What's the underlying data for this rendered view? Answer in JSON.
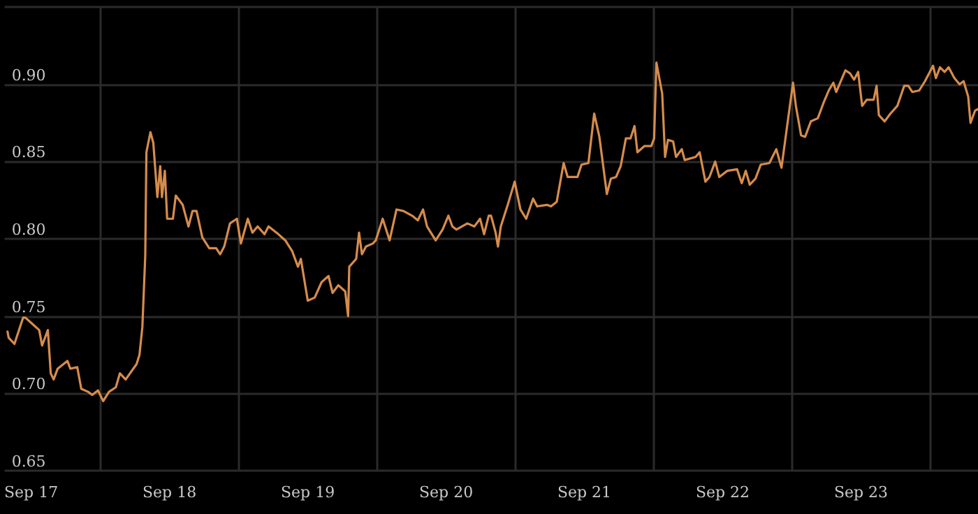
{
  "chart_data": {
    "type": "line",
    "color": "#d68c4c",
    "marker": "none",
    "line_style": "solid",
    "grid": true,
    "x": [
      "--09-16T19:54",
      "--09-16T20:06",
      "--09-16T21:06",
      "--09-16T22:36",
      "--09-16T23:00",
      "--09-17T00:12",
      "--09-17T01:24",
      "--09-17T01:54",
      "--09-17T02:54",
      "--09-17T03:24",
      "--09-17T03:54",
      "--09-17T04:36",
      "--09-17T06:18",
      "--09-17T06:48",
      "--09-17T08:00",
      "--09-17T08:42",
      "--09-17T09:54",
      "--09-17T10:36",
      "--09-17T11:36",
      "--09-17T12:30",
      "--09-17T13:30",
      "--09-17T14:42",
      "--09-17T15:24",
      "--09-17T16:24",
      "--09-17T18:18",
      "--09-17T18:48",
      "--09-17T19:18",
      "--09-17T19:48",
      "--09-17T20:00",
      "--09-17T20:42",
      "--09-17T21:12",
      "--09-17T21:54",
      "--09-17T22:24",
      "--09-17T22:42",
      "--09-17T23:12",
      "--09-17T23:36",
      "--09-18T00:36",
      "--09-18T01:06",
      "--09-18T02:18",
      "--09-18T03:18",
      "--09-18T04:00",
      "--09-18T04:42",
      "--09-18T05:42",
      "--09-18T06:54",
      "--09-18T08:06",
      "--09-18T08:48",
      "--09-18T09:30",
      "--09-18T10:30",
      "--09-18T11:42",
      "--09-18T12:24",
      "--09-18T13:36",
      "--09-18T14:24",
      "--09-18T15:18",
      "--09-18T16:30",
      "--09-18T17:12",
      "--09-18T18:54",
      "--09-18T20:06",
      "--09-18T21:18",
      "--09-18T21:36",
      "--09-18T22:18",
      "--09-18T22:48",
      "--09-19T00:00",
      "--09-19T01:12",
      "--09-19T02:24",
      "--09-19T03:36",
      "--09-19T04:18",
      "--09-19T05:18",
      "--09-19T06:30",
      "--09-19T07:00",
      "--09-19T07:12",
      "--09-19T08:24",
      "--09-19T08:54",
      "--09-19T09:24",
      "--09-19T10:06",
      "--09-19T11:18",
      "--09-19T11:48",
      "--09-19T13:00",
      "--09-19T14:12",
      "--09-19T15:24",
      "--09-19T16:36",
      "--09-19T18:06",
      "--09-19T19:06",
      "--09-19T20:00",
      "--09-19T20:42",
      "--09-19T22:12",
      "--09-19T23:24",
      "--09-20T00:24",
      "--09-20T01:06",
      "--09-20T01:48",
      "--09-20T03:42",
      "--09-20T04:54",
      "--09-20T05:54",
      "--09-20T06:36",
      "--09-20T07:24",
      "--09-20T07:48",
      "--09-20T08:36",
      "--09-20T09:00",
      "--09-20T09:30",
      "--09-20T10:42",
      "--09-20T11:54",
      "--09-20T12:54",
      "--09-20T13:54",
      "--09-20T15:06",
      "--09-20T15:48",
      "--09-20T17:30",
      "--09-20T18:12",
      "--09-20T19:12",
      "--09-20T20:24",
      "--09-20T21:06",
      "--09-20T22:48",
      "--09-20T23:30",
      "--09-21T00:42",
      "--09-21T01:42",
      "--09-21T02:36",
      "--09-21T03:54",
      "--09-21T04:36",
      "--09-21T05:30",
      "--09-21T06:18",
      "--09-21T07:12",
      "--09-21T08:00",
      "--09-21T08:42",
      "--09-21T09:12",
      "--09-21T10:24",
      "--09-21T11:36",
      "--09-21T12:06",
      "--09-21T12:30",
      "--09-21T13:30",
      "--09-21T14:00",
      "--09-21T14:30",
      "--09-21T15:24",
      "--09-21T15:54",
      "--09-21T16:54",
      "--09-21T17:24",
      "--09-21T19:18",
      "--09-21T20:00",
      "--09-21T21:00",
      "--09-21T21:42",
      "--09-21T22:42",
      "--09-21T23:24",
      "--09-22T00:48",
      "--09-22T02:30",
      "--09-22T03:18",
      "--09-22T04:00",
      "--09-22T04:42",
      "--09-22T05:42",
      "--09-22T06:36",
      "--09-22T08:06",
      "--09-22T09:18",
      "--09-22T10:12",
      "--09-22T12:12",
      "--09-22T12:42",
      "--09-22T13:36",
      "--09-22T14:18",
      "--09-22T15:18",
      "--09-22T16:30",
      "--09-22T17:30",
      "--09-22T18:24",
      "--09-22T19:12",
      "--09-22T19:42",
      "--09-22T21:18",
      "--09-22T22:06",
      "--09-22T22:48",
      "--09-22T23:30",
      "--09-23T00:12",
      "--09-23T01:00",
      "--09-23T02:12",
      "--09-23T02:42",
      "--09-23T03:06",
      "--09-23T04:06",
      "--09-23T05:06",
      "--09-23T06:18",
      "--09-23T07:30",
      "--09-23T08:12",
      "--09-23T08:54",
      "--09-23T10:06",
      "--09-23T11:06",
      "--09-23T11:48",
      "--09-23T12:30",
      "--09-23T13:00",
      "--09-23T13:42",
      "--09-23T14:30",
      "--09-23T15:12",
      "--09-23T16:12",
      "--09-23T17:06",
      "--09-23T17:48",
      "--09-23T18:36",
      "--09-23T19:00",
      "--09-23T19:48",
      "--09-23T20:18"
    ],
    "values": [
      0.74,
      0.736,
      0.732,
      0.749,
      0.749,
      0.745,
      0.741,
      0.731,
      0.741,
      0.713,
      0.709,
      0.716,
      0.721,
      0.716,
      0.717,
      0.703,
      0.701,
      0.699,
      0.702,
      0.695,
      0.701,
      0.704,
      0.713,
      0.709,
      0.719,
      0.725,
      0.743,
      0.789,
      0.856,
      0.869,
      0.862,
      0.827,
      0.847,
      0.827,
      0.844,
      0.813,
      0.813,
      0.828,
      0.822,
      0.808,
      0.818,
      0.818,
      0.801,
      0.794,
      0.794,
      0.79,
      0.795,
      0.81,
      0.813,
      0.797,
      0.813,
      0.804,
      0.808,
      0.803,
      0.808,
      0.803,
      0.799,
      0.792,
      0.789,
      0.782,
      0.787,
      0.76,
      0.762,
      0.772,
      0.776,
      0.765,
      0.77,
      0.766,
      0.75,
      0.782,
      0.787,
      0.804,
      0.79,
      0.795,
      0.797,
      0.799,
      0.813,
      0.799,
      0.819,
      0.818,
      0.815,
      0.812,
      0.819,
      0.808,
      0.799,
      0.806,
      0.815,
      0.808,
      0.806,
      0.81,
      0.808,
      0.813,
      0.803,
      0.815,
      0.815,
      0.804,
      0.795,
      0.808,
      0.822,
      0.837,
      0.819,
      0.813,
      0.826,
      0.821,
      0.822,
      0.821,
      0.824,
      0.849,
      0.84,
      0.84,
      0.848,
      0.849,
      0.881,
      0.866,
      0.829,
      0.839,
      0.84,
      0.847,
      0.865,
      0.865,
      0.873,
      0.856,
      0.86,
      0.86,
      0.865,
      0.914,
      0.894,
      0.853,
      0.864,
      0.863,
      0.853,
      0.858,
      0.851,
      0.853,
      0.856,
      0.837,
      0.84,
      0.85,
      0.84,
      0.844,
      0.845,
      0.836,
      0.844,
      0.835,
      0.839,
      0.848,
      0.849,
      0.858,
      0.846,
      0.901,
      0.886,
      0.867,
      0.866,
      0.876,
      0.878,
      0.888,
      0.896,
      0.901,
      0.895,
      0.909,
      0.907,
      0.903,
      0.908,
      0.886,
      0.89,
      0.89,
      0.899,
      0.88,
      0.876,
      0.881,
      0.886,
      0.899,
      0.899,
      0.895,
      0.896,
      0.902,
      0.907,
      0.912,
      0.904,
      0.911,
      0.908,
      0.911,
      0.904,
      0.9,
      0.902,
      0.892,
      0.875,
      0.883,
      0.884
    ],
    "xlim": [
      "--09-16T19:24",
      "--09-23T20:18"
    ],
    "xticks": [
      {
        "value": "--09-17",
        "label": "Sep 17"
      },
      {
        "value": "--09-17T12:00",
        "label": null
      },
      {
        "value": "--09-18",
        "label": "Sep 18"
      },
      {
        "value": "--09-18T12:00",
        "label": null
      },
      {
        "value": "--09-19",
        "label": "Sep 19"
      },
      {
        "value": "--09-19T12:00",
        "label": null
      },
      {
        "value": "--09-20",
        "label": "Sep 20"
      },
      {
        "value": "--09-20T12:00",
        "label": null
      },
      {
        "value": "--09-21",
        "label": "Sep 21"
      },
      {
        "value": "--09-21T12:00",
        "label": null
      },
      {
        "value": "--09-22",
        "label": "Sep 22"
      },
      {
        "value": "--09-22T12:00",
        "label": null
      },
      {
        "value": "--09-23",
        "label": "Sep 23"
      },
      {
        "value": "--09-23T12:00",
        "label": null
      }
    ],
    "ylim": [
      0.65,
      0.95
    ],
    "yticks": [
      {
        "value": 0.65,
        "label": "0.65"
      },
      {
        "value": 0.7,
        "label": "0.70"
      },
      {
        "value": 0.75,
        "label": "0.75"
      },
      {
        "value": 0.8,
        "label": "0.80"
      },
      {
        "value": 0.85,
        "label": "0.85"
      },
      {
        "value": 0.9,
        "label": "0.90"
      },
      {
        "value": 0.95,
        "label": null
      }
    ]
  }
}
